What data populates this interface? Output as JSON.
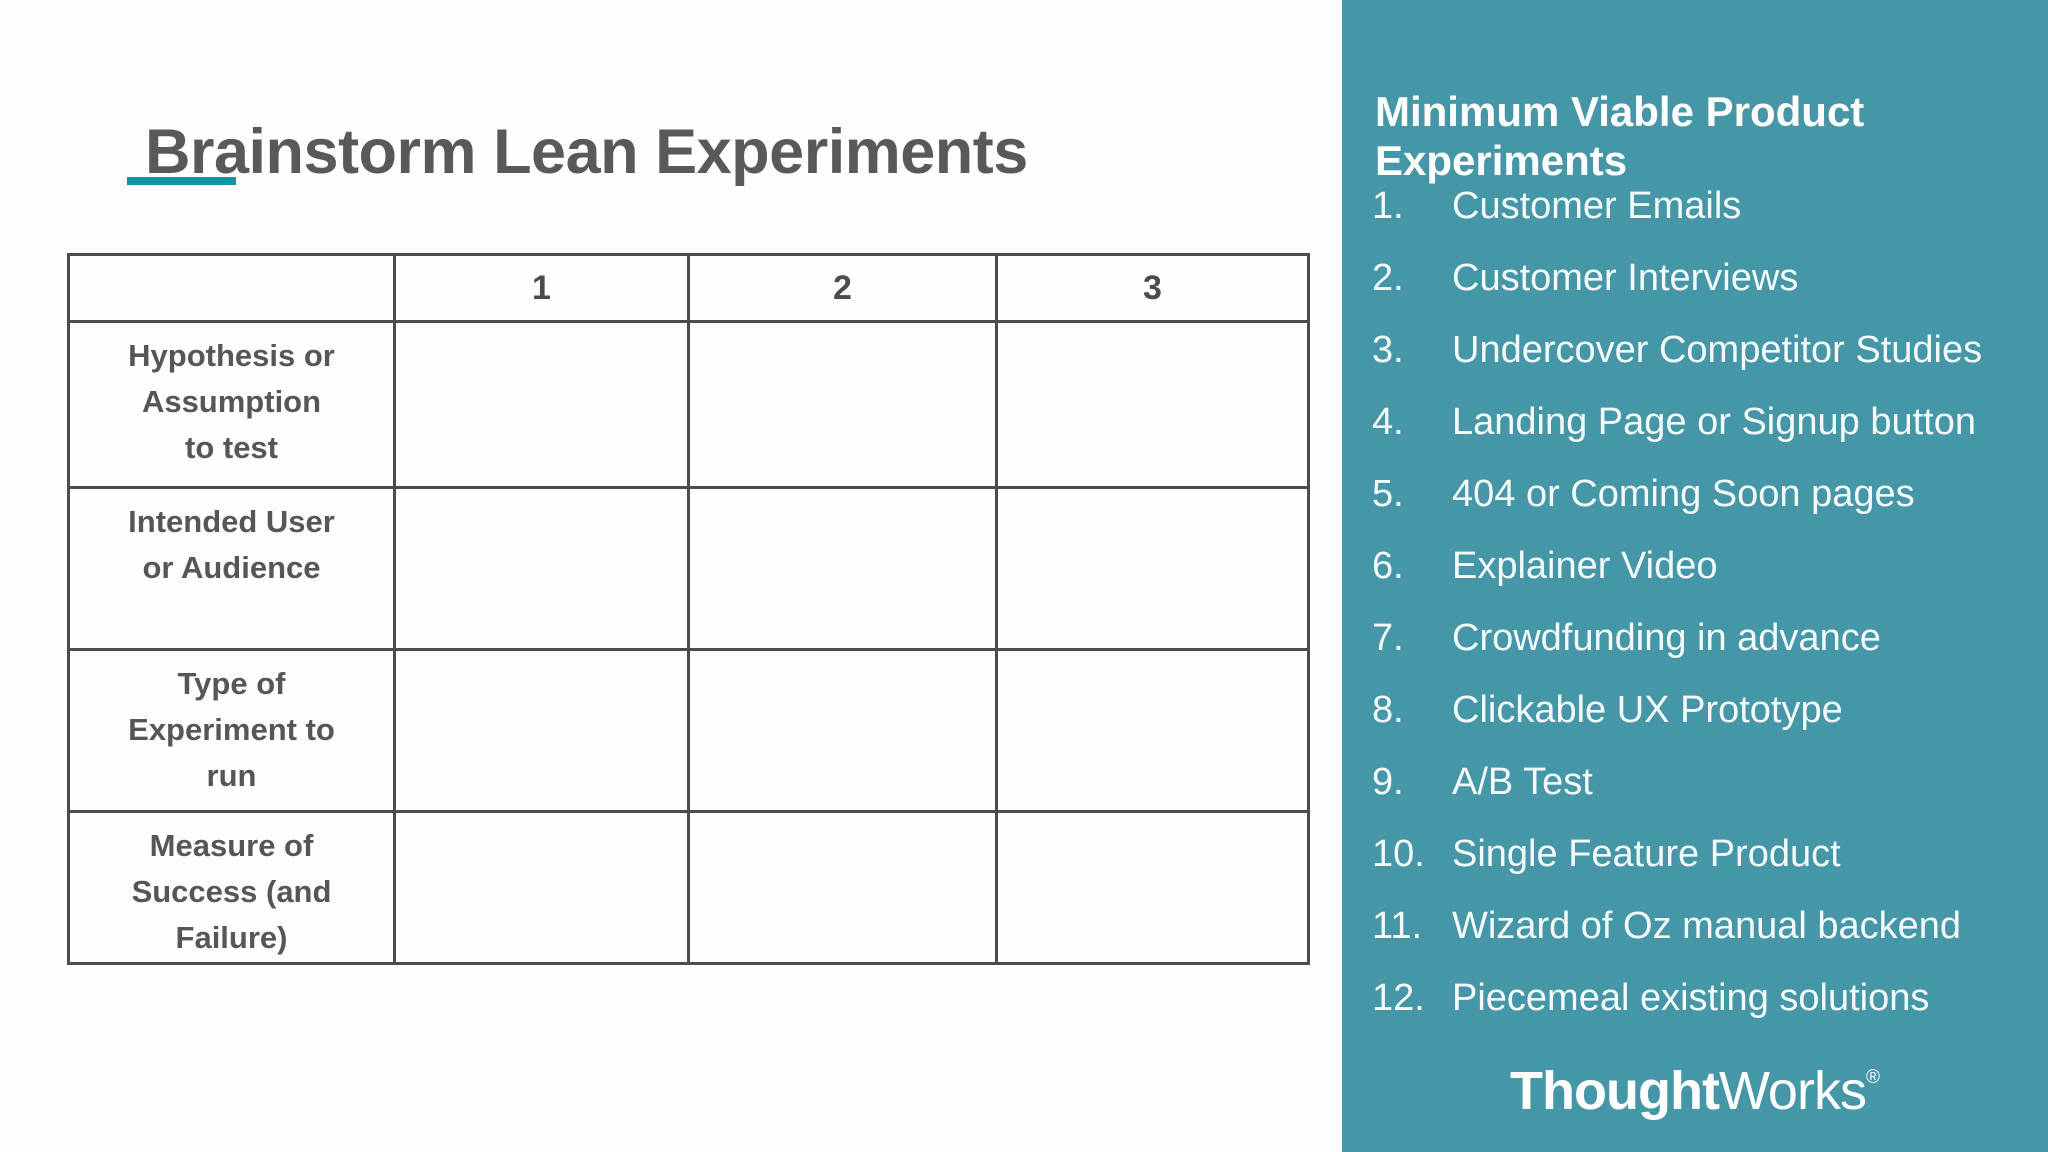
{
  "slide": {
    "title": "Brainstorm Lean Experiments"
  },
  "colors": {
    "sidebar_teal": "#4596A6",
    "accent_teal": "#1295A5",
    "title_gray": "#58595B",
    "table_border_gray": "#4B4C4E",
    "table_label_gray": "#545659",
    "list_text_white": "#F4FAFA"
  },
  "table": {
    "column_headers": [
      "",
      "1",
      "2",
      "3"
    ],
    "rows": [
      {
        "label": "Hypothesis or Assumption to test",
        "lines": [
          "Hypothesis or",
          "Assumption",
          "to test"
        ],
        "cells": [
          "",
          "",
          ""
        ]
      },
      {
        "label": "Intended User or Audience",
        "lines": [
          "Intended User",
          "or Audience"
        ],
        "cells": [
          "",
          "",
          ""
        ]
      },
      {
        "label": "Type of Experiment to run",
        "lines": [
          "Type of",
          "Experiment to",
          "run"
        ],
        "cells": [
          "",
          "",
          ""
        ]
      },
      {
        "label": "Measure of Success (and Failure)",
        "lines": [
          "Measure of",
          "Success (and",
          "Failure)"
        ],
        "cells": [
          "",
          "",
          ""
        ]
      }
    ]
  },
  "sidebar": {
    "heading": "Minimum Viable Product Experiments",
    "items": [
      {
        "number": "1.",
        "label": "Customer Emails"
      },
      {
        "number": "2.",
        "label": "Customer Interviews"
      },
      {
        "number": "3.",
        "label": "Undercover Competitor Studies"
      },
      {
        "number": "4.",
        "label": "Landing Page or Signup button"
      },
      {
        "number": "5.",
        "label": "404 or Coming Soon pages"
      },
      {
        "number": "6.",
        "label": "Explainer Video"
      },
      {
        "number": "7.",
        "label": "Crowdfunding in advance"
      },
      {
        "number": "8.",
        "label": "Clickable UX Prototype"
      },
      {
        "number": "9.",
        "label": "A/B Test"
      },
      {
        "number": "10.",
        "label": "Single Feature Product"
      },
      {
        "number": "11.",
        "label": "Wizard of Oz manual backend"
      },
      {
        "number": "12.",
        "label": "Piecemeal existing solutions"
      }
    ],
    "logo": {
      "bold": "Thought",
      "regular": "Works",
      "registered": "®"
    }
  }
}
